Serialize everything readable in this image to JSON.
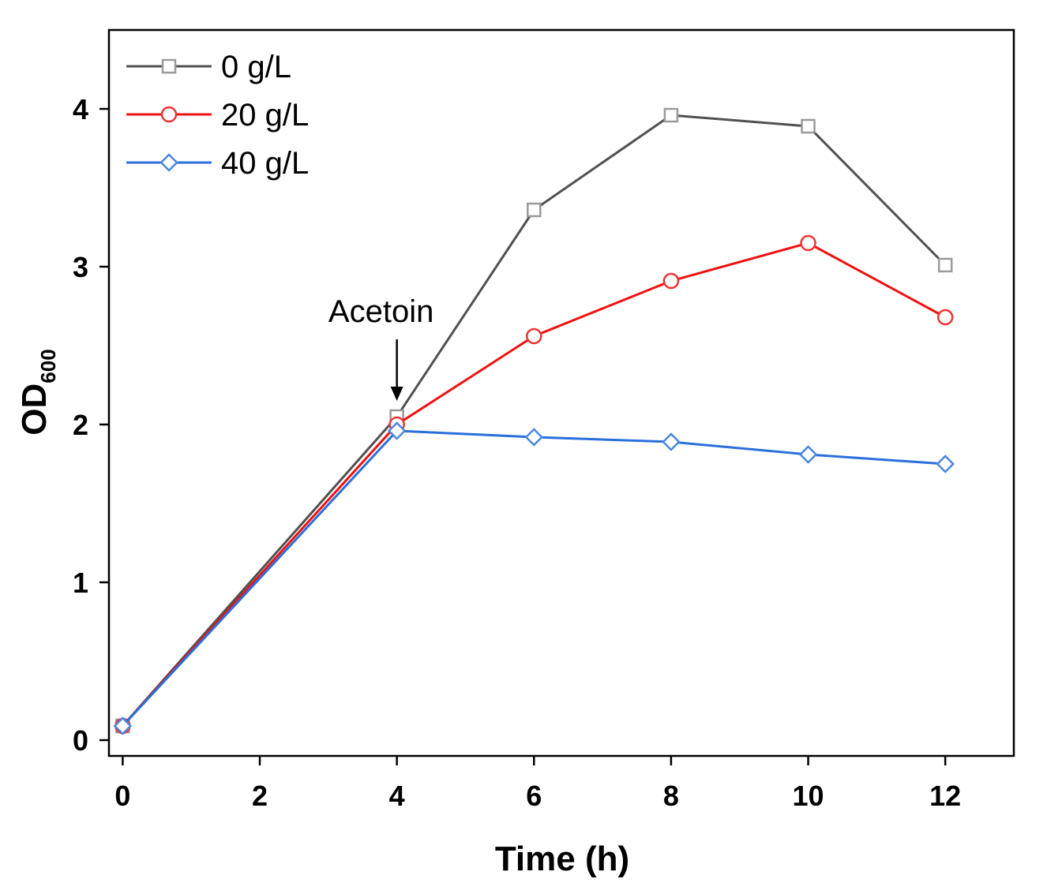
{
  "chart_data": {
    "type": "line",
    "title": "",
    "xlabel": "Time (h)",
    "ylabel_main": "OD",
    "ylabel_sub": "600",
    "xlim": [
      -0.2,
      13.0
    ],
    "ylim": [
      -0.1,
      4.5
    ],
    "x_ticks": [
      "0",
      "2",
      "4",
      "6",
      "8",
      "10",
      "12"
    ],
    "y_ticks": [
      "0",
      "1",
      "2",
      "3",
      "4"
    ],
    "grid": false,
    "legend_position": "top-left",
    "series": [
      {
        "name": "0 g/L",
        "color": "#505050",
        "marker": "square",
        "marker_color": "#9a9a9a",
        "x": [
          0,
          4,
          6,
          8,
          10,
          12
        ],
        "values": [
          0.09,
          2.05,
          3.36,
          3.96,
          3.89,
          3.01
        ]
      },
      {
        "name": "20 g/L",
        "color": "#ee1111",
        "marker": "circle",
        "marker_color": "#ee3333",
        "x": [
          0,
          4,
          6,
          8,
          10,
          12
        ],
        "values": [
          0.09,
          2.0,
          2.56,
          2.91,
          3.15,
          2.68
        ]
      },
      {
        "name": "40 g/L",
        "color": "#2a6fdc",
        "marker": "diamond",
        "marker_color": "#4a86e0",
        "x": [
          0,
          4,
          6,
          8,
          10,
          12
        ],
        "values": [
          0.09,
          1.96,
          1.92,
          1.89,
          1.81,
          1.75
        ]
      }
    ],
    "annotations": [
      {
        "text": "Acetoin",
        "x": 4,
        "y": 2.05,
        "type": "arrow-down"
      }
    ]
  }
}
